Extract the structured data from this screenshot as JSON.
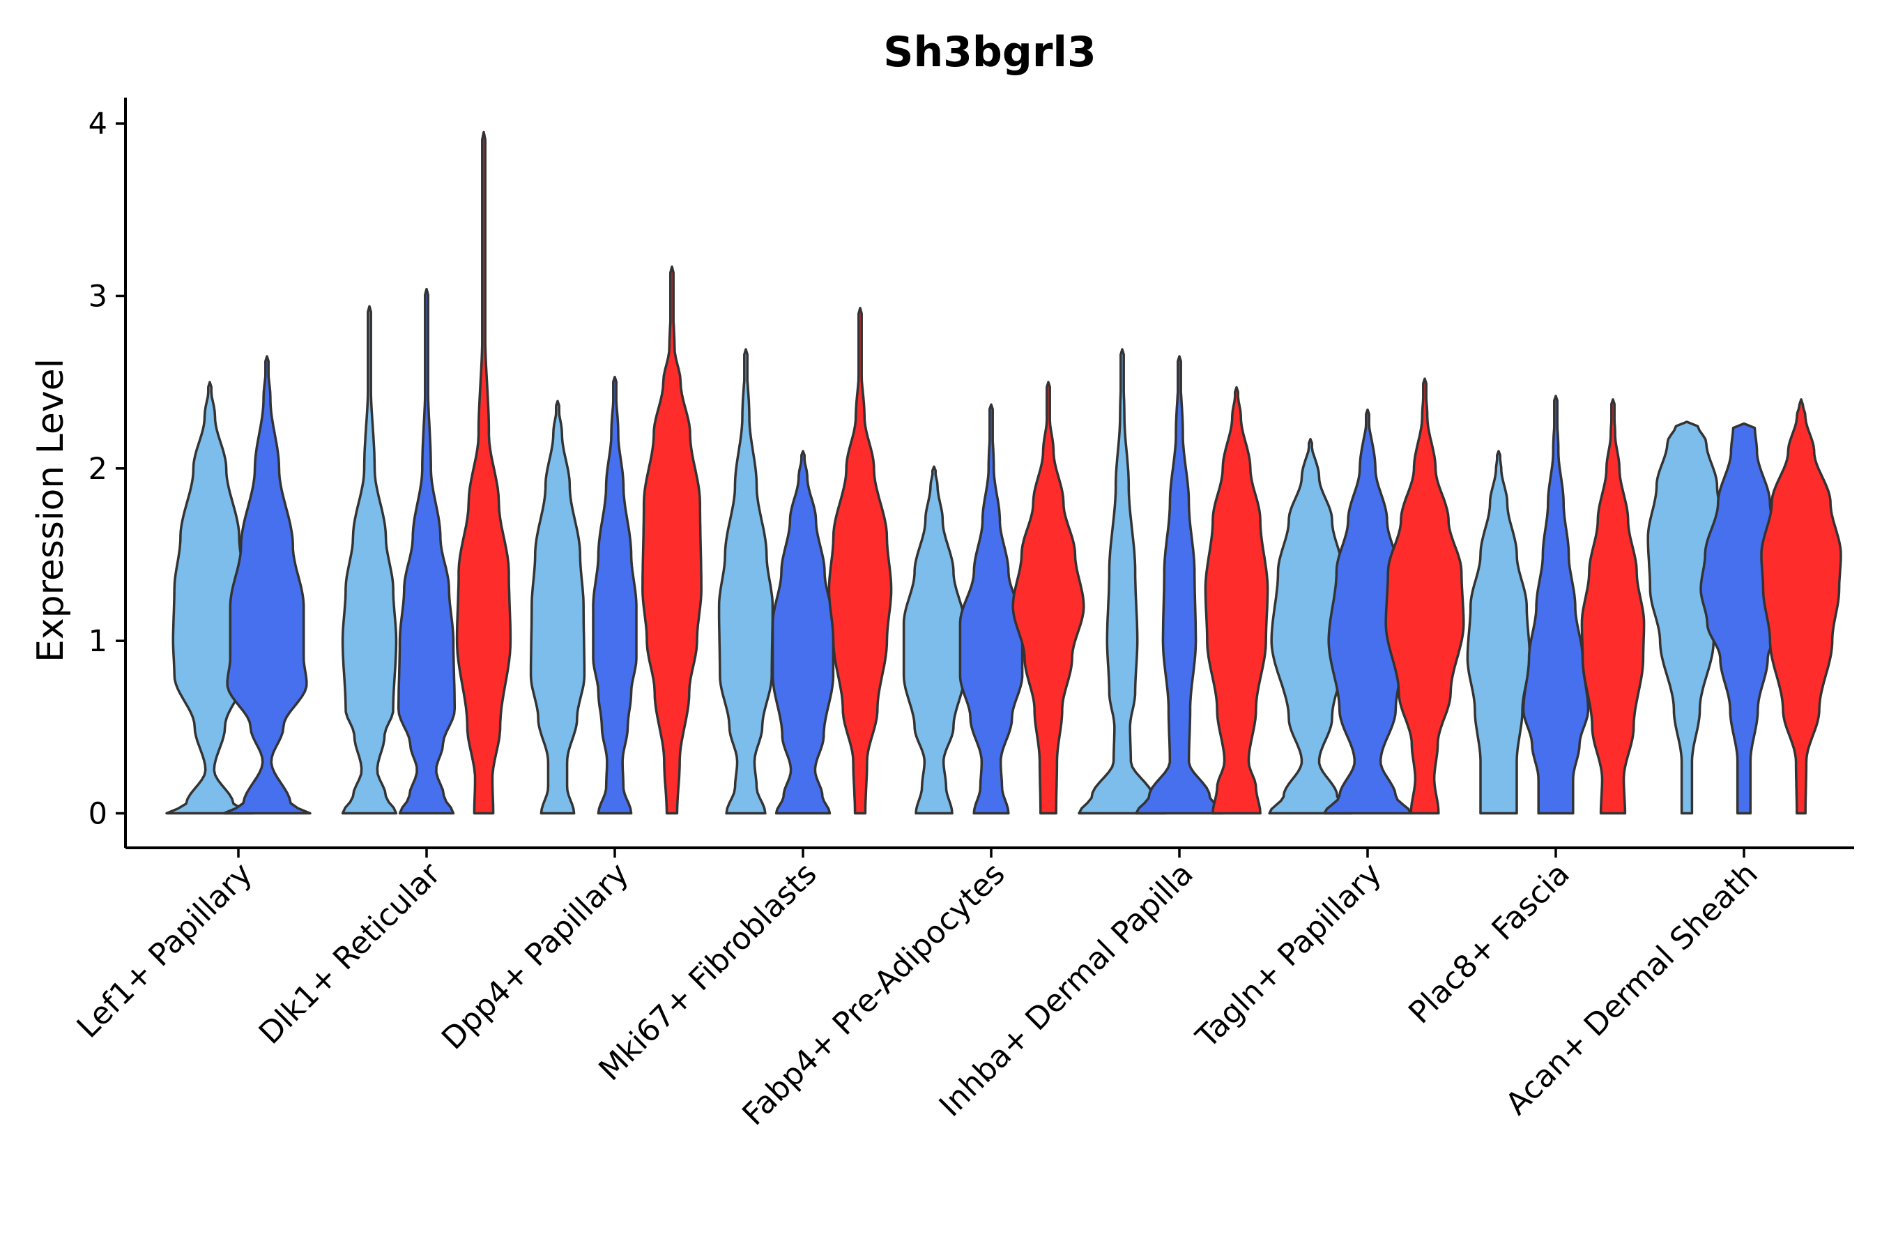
{
  "chart_data": {
    "type": "violin",
    "title": "Sh3bgrl3",
    "xlabel": "",
    "ylabel": "Expression Level",
    "ylim": [
      -0.2,
      4.15
    ],
    "yticks": [
      0,
      1,
      2,
      3,
      4
    ],
    "colors": {
      "group1": "#7CBDEB",
      "group2": "#4670EE",
      "group3": "#FF2C2C"
    },
    "categories": [
      "Lef1+ Papillary",
      "Dlk1+ Reticular",
      "Dpp4+ Papillary",
      "Mki67+ Fibroblasts",
      "Fabp4+ Pre-Adipocytes",
      "Inhba+ Dermal Papilla",
      "Tagln+ Papillary",
      "Plac8+ Fascia",
      "Acan+ Dermal Sheath"
    ],
    "violins": [
      {
        "category": "Lef1+ Papillary",
        "group": 1,
        "max": 2.5,
        "profile": [
          [
            0,
            1.0
          ],
          [
            0.05,
            0.55
          ],
          [
            0.25,
            0.1
          ],
          [
            0.5,
            0.35
          ],
          [
            0.8,
            0.82
          ],
          [
            1.0,
            0.85
          ],
          [
            1.3,
            0.82
          ],
          [
            1.6,
            0.68
          ],
          [
            2.0,
            0.38
          ],
          [
            2.3,
            0.12
          ],
          [
            2.5,
            0.0
          ]
        ]
      },
      {
        "category": "Lef1+ Papillary",
        "group": 2,
        "max": 2.65,
        "profile": [
          [
            0,
            1.0
          ],
          [
            0.05,
            0.55
          ],
          [
            0.3,
            0.1
          ],
          [
            0.5,
            0.38
          ],
          [
            0.75,
            0.92
          ],
          [
            0.9,
            0.85
          ],
          [
            1.2,
            0.85
          ],
          [
            1.55,
            0.6
          ],
          [
            2.0,
            0.28
          ],
          [
            2.4,
            0.08
          ],
          [
            2.65,
            0.0
          ]
        ]
      },
      {
        "category": "Dlk1+ Reticular",
        "group": 1,
        "max": 2.94,
        "profile": [
          [
            0,
            0.62
          ],
          [
            0.1,
            0.38
          ],
          [
            0.25,
            0.18
          ],
          [
            0.45,
            0.35
          ],
          [
            0.6,
            0.55
          ],
          [
            1.0,
            0.62
          ],
          [
            1.3,
            0.55
          ],
          [
            1.6,
            0.38
          ],
          [
            2.0,
            0.12
          ],
          [
            2.5,
            0.03
          ],
          [
            2.94,
            0.0
          ]
        ]
      },
      {
        "category": "Dlk1+ Reticular",
        "group": 2,
        "max": 3.04,
        "profile": [
          [
            0,
            0.62
          ],
          [
            0.1,
            0.4
          ],
          [
            0.25,
            0.22
          ],
          [
            0.4,
            0.38
          ],
          [
            0.6,
            0.65
          ],
          [
            1.0,
            0.62
          ],
          [
            1.3,
            0.52
          ],
          [
            1.6,
            0.32
          ],
          [
            2.0,
            0.1
          ],
          [
            2.5,
            0.03
          ],
          [
            3.04,
            0.0
          ]
        ]
      },
      {
        "category": "Dlk1+ Reticular",
        "group": 3,
        "max": 3.95,
        "profile": [
          [
            0,
            0.22
          ],
          [
            0.2,
            0.2
          ],
          [
            0.5,
            0.38
          ],
          [
            1.0,
            0.62
          ],
          [
            1.4,
            0.58
          ],
          [
            1.8,
            0.35
          ],
          [
            2.2,
            0.12
          ],
          [
            2.8,
            0.03
          ],
          [
            3.5,
            0.01
          ],
          [
            3.95,
            0.0
          ]
        ]
      },
      {
        "category": "Dpp4+ Papillary",
        "group": 1,
        "max": 2.39,
        "profile": [
          [
            0,
            0.38
          ],
          [
            0.15,
            0.22
          ],
          [
            0.3,
            0.22
          ],
          [
            0.55,
            0.45
          ],
          [
            0.8,
            0.62
          ],
          [
            1.2,
            0.6
          ],
          [
            1.5,
            0.52
          ],
          [
            1.9,
            0.28
          ],
          [
            2.2,
            0.1
          ],
          [
            2.39,
            0.0
          ]
        ]
      },
      {
        "category": "Dpp4+ Papillary",
        "group": 2,
        "max": 2.53,
        "profile": [
          [
            0,
            0.38
          ],
          [
            0.15,
            0.2
          ],
          [
            0.3,
            0.18
          ],
          [
            0.5,
            0.3
          ],
          [
            0.7,
            0.38
          ],
          [
            0.9,
            0.5
          ],
          [
            1.2,
            0.5
          ],
          [
            1.5,
            0.38
          ],
          [
            1.9,
            0.2
          ],
          [
            2.2,
            0.08
          ],
          [
            2.53,
            0.0
          ]
        ]
      },
      {
        "category": "Dpp4+ Papillary",
        "group": 3,
        "max": 3.17,
        "profile": [
          [
            0,
            0.12
          ],
          [
            0.3,
            0.18
          ],
          [
            0.7,
            0.4
          ],
          [
            1.0,
            0.58
          ],
          [
            1.3,
            0.68
          ],
          [
            1.8,
            0.65
          ],
          [
            2.2,
            0.42
          ],
          [
            2.5,
            0.2
          ],
          [
            2.7,
            0.06
          ],
          [
            3.0,
            0.01
          ],
          [
            3.17,
            0.0
          ]
        ]
      },
      {
        "category": "Mki67+ Fibroblasts",
        "group": 1,
        "max": 2.69,
        "profile": [
          [
            0,
            0.45
          ],
          [
            0.15,
            0.25
          ],
          [
            0.3,
            0.2
          ],
          [
            0.5,
            0.38
          ],
          [
            0.8,
            0.6
          ],
          [
            1.2,
            0.62
          ],
          [
            1.5,
            0.48
          ],
          [
            1.9,
            0.25
          ],
          [
            2.3,
            0.08
          ],
          [
            2.69,
            0.0
          ]
        ]
      },
      {
        "category": "Mki67+ Fibroblasts",
        "group": 2,
        "max": 2.1,
        "profile": [
          [
            0,
            0.62
          ],
          [
            0.1,
            0.45
          ],
          [
            0.25,
            0.28
          ],
          [
            0.45,
            0.48
          ],
          [
            0.8,
            0.7
          ],
          [
            1.1,
            0.7
          ],
          [
            1.4,
            0.5
          ],
          [
            1.7,
            0.3
          ],
          [
            1.95,
            0.1
          ],
          [
            2.1,
            0.0
          ]
        ]
      },
      {
        "category": "Mki67+ Fibroblasts",
        "group": 3,
        "max": 2.93,
        "profile": [
          [
            0,
            0.12
          ],
          [
            0.3,
            0.16
          ],
          [
            0.6,
            0.4
          ],
          [
            1.0,
            0.62
          ],
          [
            1.3,
            0.72
          ],
          [
            1.6,
            0.62
          ],
          [
            2.0,
            0.32
          ],
          [
            2.3,
            0.1
          ],
          [
            2.6,
            0.02
          ],
          [
            2.93,
            0.0
          ]
        ]
      },
      {
        "category": "Fabp4+ Pre-Adipocytes",
        "group": 1,
        "max": 2.01,
        "profile": [
          [
            0,
            0.42
          ],
          [
            0.15,
            0.28
          ],
          [
            0.3,
            0.22
          ],
          [
            0.5,
            0.45
          ],
          [
            0.8,
            0.7
          ],
          [
            1.1,
            0.7
          ],
          [
            1.4,
            0.45
          ],
          [
            1.7,
            0.2
          ],
          [
            1.9,
            0.08
          ],
          [
            2.01,
            0.0
          ]
        ]
      },
      {
        "category": "Fabp4+ Pre-Adipocytes",
        "group": 2,
        "max": 2.37,
        "profile": [
          [
            0,
            0.4
          ],
          [
            0.15,
            0.25
          ],
          [
            0.3,
            0.22
          ],
          [
            0.55,
            0.48
          ],
          [
            0.8,
            0.72
          ],
          [
            1.1,
            0.72
          ],
          [
            1.4,
            0.4
          ],
          [
            1.7,
            0.2
          ],
          [
            2.0,
            0.06
          ],
          [
            2.37,
            0.0
          ]
        ]
      },
      {
        "category": "Fabp4+ Pre-Adipocytes",
        "group": 3,
        "max": 2.5,
        "profile": [
          [
            0,
            0.18
          ],
          [
            0.3,
            0.2
          ],
          [
            0.6,
            0.32
          ],
          [
            0.9,
            0.55
          ],
          [
            1.2,
            0.82
          ],
          [
            1.5,
            0.62
          ],
          [
            1.8,
            0.35
          ],
          [
            2.1,
            0.12
          ],
          [
            2.3,
            0.03
          ],
          [
            2.5,
            0.0
          ]
        ]
      },
      {
        "category": "Inhba+ Dermal Papilla",
        "group": 1,
        "max": 2.69,
        "profile": [
          [
            0,
            1.0
          ],
          [
            0.1,
            0.7
          ],
          [
            0.3,
            0.2
          ],
          [
            0.5,
            0.18
          ],
          [
            0.7,
            0.3
          ],
          [
            1.0,
            0.35
          ],
          [
            1.4,
            0.3
          ],
          [
            1.9,
            0.15
          ],
          [
            2.3,
            0.05
          ],
          [
            2.69,
            0.0
          ]
        ]
      },
      {
        "category": "Inhba+ Dermal Papilla",
        "group": 2,
        "max": 2.65,
        "profile": [
          [
            0,
            1.0
          ],
          [
            0.1,
            0.7
          ],
          [
            0.3,
            0.22
          ],
          [
            0.6,
            0.25
          ],
          [
            1.0,
            0.38
          ],
          [
            1.4,
            0.35
          ],
          [
            1.8,
            0.22
          ],
          [
            2.2,
            0.08
          ],
          [
            2.65,
            0.0
          ]
        ]
      },
      {
        "category": "Inhba+ Dermal Papilla",
        "group": 3,
        "max": 2.47,
        "profile": [
          [
            0,
            0.55
          ],
          [
            0.15,
            0.45
          ],
          [
            0.3,
            0.28
          ],
          [
            0.6,
            0.45
          ],
          [
            1.0,
            0.68
          ],
          [
            1.3,
            0.72
          ],
          [
            1.7,
            0.55
          ],
          [
            2.0,
            0.32
          ],
          [
            2.3,
            0.1
          ],
          [
            2.47,
            0.0
          ]
        ]
      },
      {
        "category": "Tagln+ Papillary",
        "group": 1,
        "max": 2.17,
        "profile": [
          [
            0,
            0.95
          ],
          [
            0.1,
            0.62
          ],
          [
            0.3,
            0.2
          ],
          [
            0.55,
            0.5
          ],
          [
            1.0,
            0.9
          ],
          [
            1.4,
            0.75
          ],
          [
            1.7,
            0.5
          ],
          [
            1.95,
            0.2
          ],
          [
            2.17,
            0.0
          ]
        ]
      },
      {
        "category": "Tagln+ Papillary",
        "group": 2,
        "max": 2.34,
        "profile": [
          [
            0,
            1.0
          ],
          [
            0.1,
            0.65
          ],
          [
            0.3,
            0.3
          ],
          [
            0.6,
            0.65
          ],
          [
            1.0,
            0.9
          ],
          [
            1.4,
            0.72
          ],
          [
            1.7,
            0.45
          ],
          [
            2.0,
            0.18
          ],
          [
            2.34,
            0.0
          ]
        ]
      },
      {
        "category": "Tagln+ Papillary",
        "group": 3,
        "max": 2.52,
        "profile": [
          [
            0,
            0.32
          ],
          [
            0.2,
            0.22
          ],
          [
            0.4,
            0.3
          ],
          [
            0.7,
            0.6
          ],
          [
            1.1,
            0.9
          ],
          [
            1.4,
            0.85
          ],
          [
            1.7,
            0.55
          ],
          [
            2.0,
            0.25
          ],
          [
            2.3,
            0.06
          ],
          [
            2.52,
            0.0
          ]
        ]
      },
      {
        "category": "Plac8+ Fascia",
        "group": 1,
        "max": 2.1,
        "profile": [
          [
            0,
            0.42
          ],
          [
            0.3,
            0.42
          ],
          [
            0.6,
            0.55
          ],
          [
            0.9,
            0.72
          ],
          [
            1.2,
            0.65
          ],
          [
            1.5,
            0.42
          ],
          [
            1.8,
            0.2
          ],
          [
            2.0,
            0.06
          ],
          [
            2.1,
            0.0
          ]
        ]
      },
      {
        "category": "Plac8+ Fascia",
        "group": 2,
        "max": 2.42,
        "profile": [
          [
            0,
            0.4
          ],
          [
            0.2,
            0.4
          ],
          [
            0.4,
            0.55
          ],
          [
            0.6,
            0.75
          ],
          [
            0.9,
            0.62
          ],
          [
            1.2,
            0.45
          ],
          [
            1.5,
            0.3
          ],
          [
            1.8,
            0.18
          ],
          [
            2.1,
            0.06
          ],
          [
            2.42,
            0.0
          ]
        ]
      },
      {
        "category": "Plac8+ Fascia",
        "group": 3,
        "max": 2.4,
        "profile": [
          [
            0,
            0.28
          ],
          [
            0.2,
            0.25
          ],
          [
            0.5,
            0.48
          ],
          [
            0.9,
            0.7
          ],
          [
            1.1,
            0.72
          ],
          [
            1.4,
            0.55
          ],
          [
            1.7,
            0.35
          ],
          [
            2.0,
            0.15
          ],
          [
            2.2,
            0.05
          ],
          [
            2.4,
            0.0
          ]
        ]
      },
      {
        "category": "Acan+ Dermal Sheath",
        "group": 1,
        "max": 2.27,
        "profile": [
          [
            0,
            0.12
          ],
          [
            0.3,
            0.12
          ],
          [
            0.6,
            0.3
          ],
          [
            1.0,
            0.62
          ],
          [
            1.3,
            0.85
          ],
          [
            1.6,
            0.9
          ],
          [
            1.9,
            0.7
          ],
          [
            2.15,
            0.45
          ],
          [
            2.25,
            0.25
          ],
          [
            2.27,
            0.0
          ]
        ]
      },
      {
        "category": "Acan+ Dermal Sheath",
        "group": 2,
        "max": 2.26,
        "profile": [
          [
            0,
            0.15
          ],
          [
            0.3,
            0.15
          ],
          [
            0.6,
            0.32
          ],
          [
            0.9,
            0.55
          ],
          [
            1.1,
            0.85
          ],
          [
            1.3,
            1.0
          ],
          [
            1.5,
            0.9
          ],
          [
            1.8,
            0.6
          ],
          [
            2.1,
            0.3
          ],
          [
            2.24,
            0.25
          ],
          [
            2.26,
            0.0
          ]
        ]
      },
      {
        "category": "Acan+ Dermal Sheath",
        "group": 3,
        "max": 2.4,
        "profile": [
          [
            0,
            0.1
          ],
          [
            0.3,
            0.12
          ],
          [
            0.6,
            0.42
          ],
          [
            1.0,
            0.72
          ],
          [
            1.3,
            0.88
          ],
          [
            1.5,
            0.92
          ],
          [
            1.8,
            0.68
          ],
          [
            2.1,
            0.3
          ],
          [
            2.3,
            0.1
          ],
          [
            2.4,
            0.0
          ]
        ]
      }
    ]
  }
}
